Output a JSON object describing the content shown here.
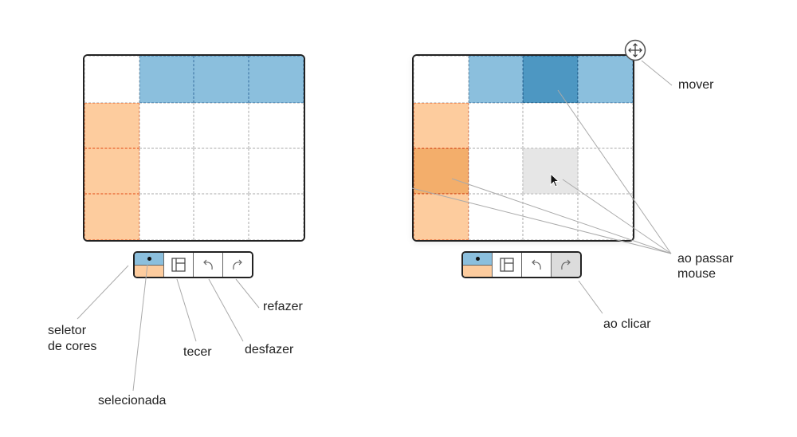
{
  "grid_colors": {
    "row_palette": "#8bbfdd",
    "row_palette_hover": "#4d97c2",
    "column_palette": "#fdcc9e",
    "column_palette_hover": "#f3ae6b",
    "hover_cell": "#e6e6e6"
  },
  "annotations": {
    "color_selector": "seletor",
    "color_selector_line2": "de  cores",
    "selected": "selecionada",
    "weave": "tecer",
    "undo": "desfazer",
    "redo": "refazer",
    "move": "mover",
    "on_hover": "ao  passar",
    "on_hover_line2": "mouse",
    "on_click": "ao  clicar"
  },
  "icons": {
    "weave": "weave-icon",
    "undo": "undo-icon",
    "redo": "redo-icon",
    "move": "move-icon",
    "cursor": "cursor-icon"
  }
}
